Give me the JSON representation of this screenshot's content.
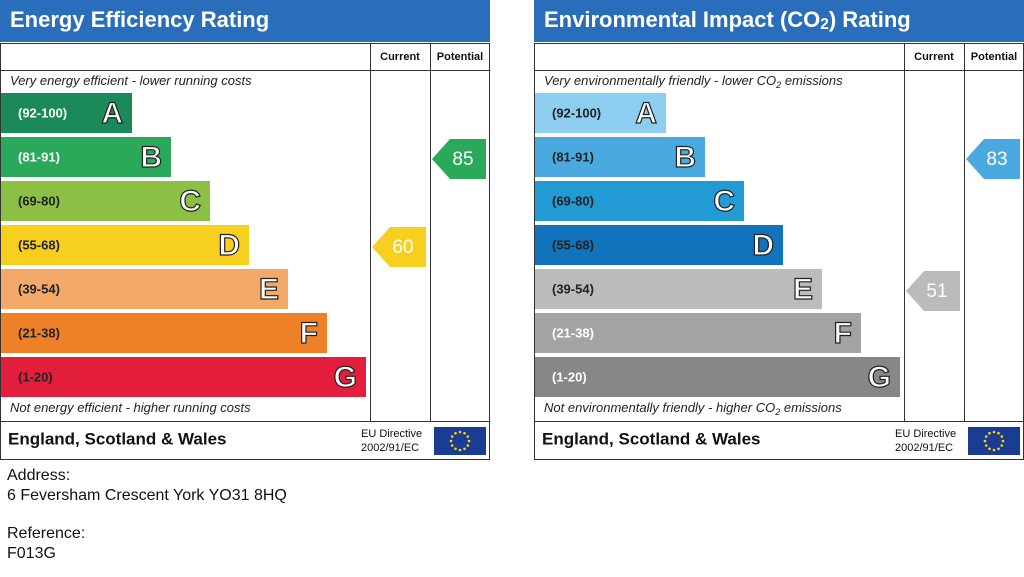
{
  "panels": [
    {
      "title_parts": [
        "Energy Efficiency Rating"
      ],
      "col_current": "Current",
      "col_potential": "Potential",
      "top_parts": [
        "Very energy efficient - lower running costs"
      ],
      "bottom_parts": [
        "Not energy efficient - higher running costs"
      ],
      "bands": [
        {
          "range": "(92-100)",
          "letter": "A",
          "color": "#1a8a5a",
          "text": "#ffffff"
        },
        {
          "range": "(81-91)",
          "letter": "B",
          "color": "#2aa95a",
          "text": "#ffffff"
        },
        {
          "range": "(69-80)",
          "letter": "C",
          "color": "#8cc045",
          "text": "#222222"
        },
        {
          "range": "(55-68)",
          "letter": "D",
          "color": "#f7cf1e",
          "text": "#222222"
        },
        {
          "range": "(39-54)",
          "letter": "E",
          "color": "#f2a96a",
          "text": "#222222"
        },
        {
          "range": "(21-38)",
          "letter": "F",
          "color": "#ee8128",
          "text": "#222222"
        },
        {
          "range": "(1-20)",
          "letter": "G",
          "color": "#e31e3d",
          "text": "#222222"
        }
      ],
      "current": 60,
      "potential": 85,
      "footer": "England, Scotland & Wales",
      "directive": "EU Directive",
      "directive_code": "2002/91/EC"
    },
    {
      "title_parts": [
        "Environmental Impact (CO",
        "2",
        ") Rating"
      ],
      "col_current": "Current",
      "col_potential": "Potential",
      "top_parts": [
        "Very environmentally friendly - lower CO",
        "2",
        " emissions"
      ],
      "bottom_parts": [
        "Not environmentally friendly - higher CO",
        "2",
        " emissions"
      ],
      "bands": [
        {
          "range": "(92-100)",
          "letter": "A",
          "color": "#8dcdf0",
          "text": "#222222"
        },
        {
          "range": "(81-91)",
          "letter": "B",
          "color": "#4aa9df",
          "text": "#222222"
        },
        {
          "range": "(69-80)",
          "letter": "C",
          "color": "#229bd5",
          "text": "#222222"
        },
        {
          "range": "(55-68)",
          "letter": "D",
          "color": "#1073bb",
          "text": "#222222"
        },
        {
          "range": "(39-54)",
          "letter": "E",
          "color": "#bbbbbb",
          "text": "#222222"
        },
        {
          "range": "(21-38)",
          "letter": "F",
          "color": "#a3a3a3",
          "text": "#ffffff"
        },
        {
          "range": "(1-20)",
          "letter": "G",
          "color": "#878787",
          "text": "#ffffff"
        }
      ],
      "current": 51,
      "potential": 83,
      "footer": "England, Scotland & Wales",
      "directive": "EU Directive",
      "directive_code": "2002/91/EC"
    }
  ],
  "address": {
    "label": "Address:",
    "value": "6 Feversham Crescent York YO31 8HQ"
  },
  "reference": {
    "label": "Reference:",
    "value": "F013G"
  }
}
